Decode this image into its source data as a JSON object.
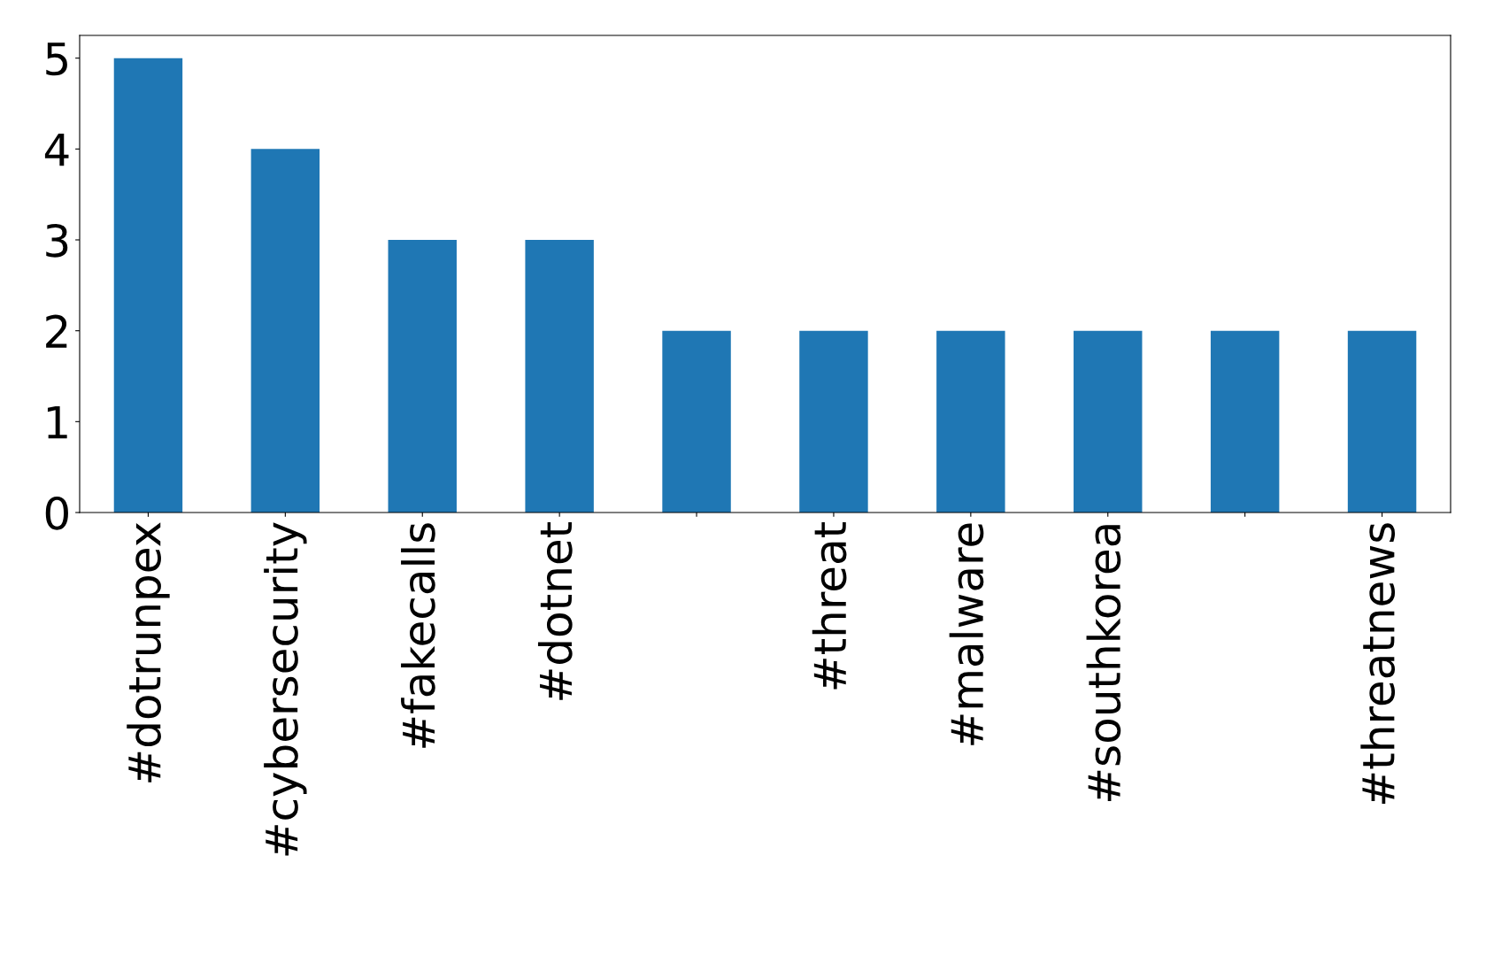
{
  "chart_data": {
    "type": "bar",
    "categories": [
      "#dotrunpex",
      "#cybersecurity",
      "#fakecalls",
      "#dotnet",
      null,
      "#threat",
      "#malware",
      "#southkorea",
      null,
      "#threatnews"
    ],
    "values": [
      5,
      4,
      3,
      3,
      2,
      2,
      2,
      2,
      2,
      2
    ],
    "color": "#1f77b4",
    "ylim": [
      0,
      5.25
    ],
    "yticks": [
      0,
      1,
      2,
      3,
      4,
      5
    ],
    "grid": false,
    "legend": false
  }
}
